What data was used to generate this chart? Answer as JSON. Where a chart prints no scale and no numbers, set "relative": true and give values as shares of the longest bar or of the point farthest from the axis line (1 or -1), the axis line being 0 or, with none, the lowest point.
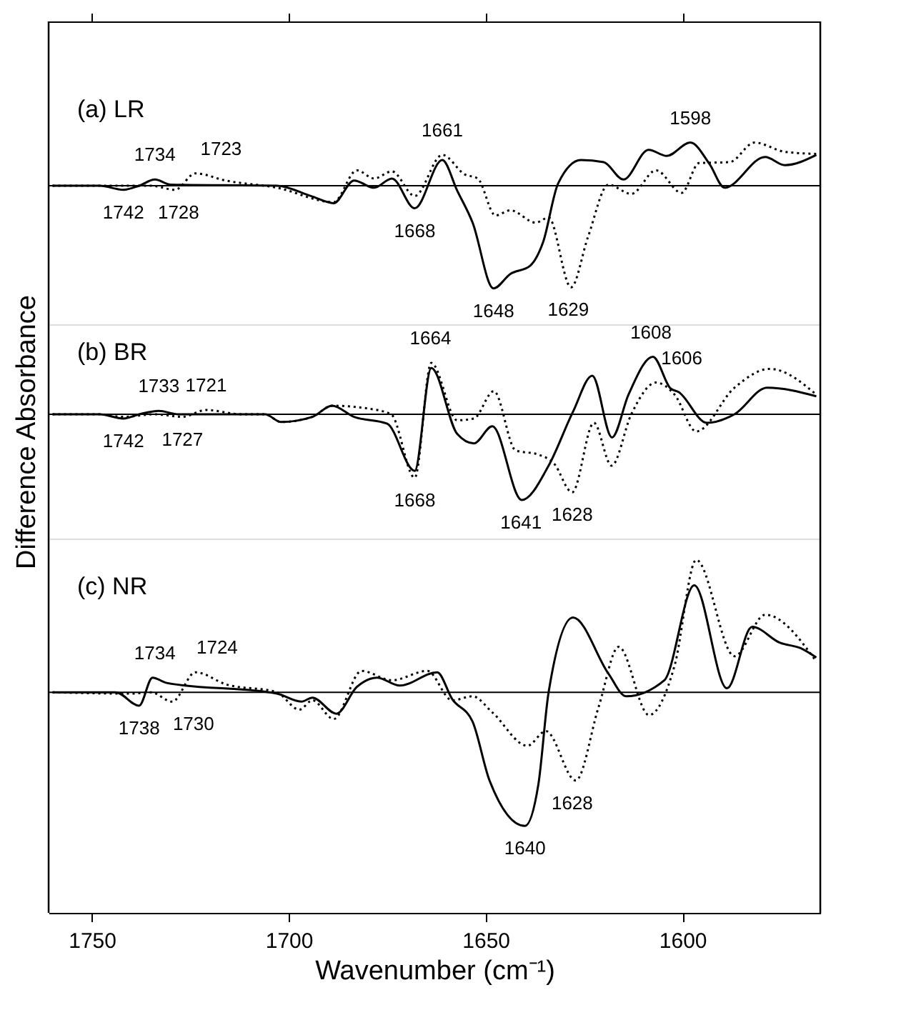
{
  "chart_data": [
    {
      "type": "line",
      "relative": true,
      "title": "(a) LR",
      "xlim": [
        1761,
        1565
      ],
      "tick_labels": false,
      "xticks": [
        {
          "value": 1750,
          "label": null
        },
        {
          "value": 1700,
          "label": null
        },
        {
          "value": 1650,
          "label": null
        },
        {
          "value": 1600,
          "label": null
        }
      ],
      "ref_lines": [
        {
          "axis": "y",
          "value": 0
        }
      ],
      "series": [
        {
          "color": "#000000",
          "line_style": "solid",
          "x": [
            1760,
            1748,
            1742,
            1738,
            1734,
            1730,
            1703,
            1694.4,
            1688.6,
            1683.4,
            1678.3,
            1673.8,
            1668,
            1661,
            1657.2,
            1653.3,
            1648,
            1643.7,
            1638.7,
            1635.4,
            1631.6,
            1625.8,
            1620,
            1615,
            1608.6,
            1604,
            1598,
            1593.1,
            1589.3,
            1579,
            1574,
            1566
          ],
          "values": [
            0,
            0,
            -0.04,
            0,
            0.06,
            0.01,
            0,
            -0.1,
            -0.17,
            0.05,
            -0.02,
            0.07,
            -0.22,
            0.25,
            -0.05,
            -0.36,
            -1,
            -0.86,
            -0.78,
            -0.55,
            0.02,
            0.25,
            0.23,
            0.06,
            0.35,
            0.29,
            0.42,
            0.21,
            -0.02,
            0.28,
            0.2,
            0.3
          ]
        },
        {
          "color": "#000000",
          "line_style": "dotted",
          "x": [
            1760,
            1735,
            1728.9,
            1723.7,
            1716,
            1703,
            1688.6,
            1682.7,
            1678.3,
            1673.8,
            1668,
            1661,
            1655.3,
            1652,
            1647.5,
            1643.7,
            1637.3,
            1634,
            1628.3,
            1624,
            1618.8,
            1613,
            1606.7,
            1600.2,
            1595.8,
            1588,
            1581.7,
            1574,
            1566
          ],
          "values": [
            0,
            0,
            -0.04,
            0.12,
            0.05,
            -0.02,
            -0.16,
            0.15,
            0.07,
            0.14,
            -0.1,
            0.3,
            0.11,
            0.07,
            -0.29,
            -0.24,
            -0.36,
            -0.31,
            -0.99,
            -0.5,
            0.01,
            -0.08,
            0.15,
            -0.07,
            0.22,
            0.23,
            0.42,
            0.33,
            0.31
          ]
        }
      ],
      "annotations": [
        {
          "text": "1742",
          "x": 1742,
          "y": -0.04
        },
        {
          "text": "1734",
          "x": 1734,
          "y": 0.06
        },
        {
          "text": "1723",
          "x": 1723,
          "y": 0.12
        },
        {
          "text": "1728",
          "x": 1728,
          "y": -0.04
        },
        {
          "text": "1668",
          "x": 1668,
          "y": -0.22
        },
        {
          "text": "1661",
          "x": 1661,
          "y": 0.3
        },
        {
          "text": "1648",
          "x": 1648,
          "y": -1
        },
        {
          "text": "1629",
          "x": 1629,
          "y": -0.99
        },
        {
          "text": "1598",
          "x": 1598,
          "y": 0.42
        }
      ]
    },
    {
      "type": "line",
      "relative": true,
      "title": "(b) BR",
      "ylabel": "Difference Absorbance",
      "xlim": [
        1761,
        1565
      ],
      "tick_labels": false,
      "ref_lines": [
        {
          "axis": "y",
          "value": 0
        }
      ],
      "series": [
        {
          "color": "#000000",
          "line_style": "solid",
          "x": [
            1760,
            1748,
            1742,
            1738,
            1733,
            1728,
            1706,
            1702,
            1694,
            1689,
            1683.4,
            1675,
            1668,
            1663.8,
            1657.2,
            1653,
            1648.3,
            1640.8,
            1634,
            1627.8,
            1622.9,
            1617.9,
            1613.7,
            1607.5,
            1603,
            1601,
            1593.8,
            1586.8,
            1578.5,
            1566
          ],
          "values": [
            0,
            0,
            -0.05,
            0,
            0.04,
            0,
            0,
            -0.09,
            -0.03,
            0.1,
            -0.03,
            -0.11,
            -0.66,
            0.54,
            -0.23,
            -0.34,
            -0.14,
            -1,
            -0.6,
            0.03,
            0.45,
            -0.27,
            0.23,
            0.67,
            0.3,
            0.26,
            -0.1,
            0,
            0.31,
            0.21
          ]
        },
        {
          "color": "#000000",
          "line_style": "dotted",
          "x": [
            1760,
            1748,
            1742,
            1734,
            1727,
            1721,
            1712,
            1706,
            1702,
            1694,
            1689,
            1680.3,
            1674,
            1668,
            1663.8,
            1657.2,
            1653,
            1647.9,
            1642.4,
            1636.6,
            1632.7,
            1628,
            1622.5,
            1618,
            1613,
            1606.7,
            1602,
            1596.5,
            1586.8,
            1577.8,
            1566
          ],
          "values": [
            0,
            0,
            -0.03,
            0,
            -0.03,
            0.05,
            0,
            0,
            -0.09,
            -0.03,
            0.1,
            0.07,
            0,
            -0.74,
            0.6,
            -0.07,
            -0.05,
            0.27,
            -0.42,
            -0.47,
            -0.57,
            -0.91,
            -0.1,
            -0.6,
            0,
            0.37,
            0.23,
            -0.2,
            0.31,
            0.53,
            0.23
          ]
        }
      ],
      "annotations": [
        {
          "text": "1742",
          "x": 1742,
          "y": -0.05
        },
        {
          "text": "1733",
          "x": 1733,
          "y": 0.04
        },
        {
          "text": "1721",
          "x": 1721,
          "y": 0.05
        },
        {
          "text": "1727",
          "x": 1727,
          "y": -0.03
        },
        {
          "text": "1668",
          "x": 1668,
          "y": -0.74
        },
        {
          "text": "1664",
          "x": 1664,
          "y": 0.6
        },
        {
          "text": "1641",
          "x": 1641,
          "y": -1
        },
        {
          "text": "1628",
          "x": 1628,
          "y": -0.91
        },
        {
          "text": "1608",
          "x": 1608,
          "y": 0.67
        },
        {
          "text": "1606",
          "x": 1606,
          "y": 0.37
        }
      ]
    },
    {
      "type": "line",
      "relative": true,
      "title": "(c) NR",
      "xlabel": "Wavenumber (cm⁻¹)",
      "xlim": [
        1761,
        1565
      ],
      "tick_labels": "x",
      "xticks": [
        1750,
        1700,
        1650,
        1600
      ],
      "ref_lines": [
        {
          "axis": "y",
          "value": 0
        }
      ],
      "series": [
        {
          "color": "#000000",
          "line_style": "solid",
          "x": [
            1760,
            1744,
            1738,
            1734.6,
            1731,
            1703,
            1696.8,
            1694,
            1687.9,
            1682.7,
            1677.6,
            1671.8,
            1662.3,
            1658.5,
            1653.3,
            1649,
            1640,
            1636.6,
            1634,
            1627.8,
            1618.8,
            1614.3,
            1604.6,
            1597,
            1588.7,
            1582.3,
            1575.2,
            1570,
            1566
          ],
          "values": [
            0,
            0,
            -0.1,
            0.11,
            0.07,
            -0.01,
            -0.07,
            -0.04,
            -0.16,
            0.04,
            0.11,
            0.05,
            0.15,
            -0.05,
            -0.22,
            -0.66,
            -1,
            -0.69,
            0,
            0.56,
            0.14,
            -0.03,
            0.09,
            0.8,
            0.03,
            0.49,
            0.37,
            0.33,
            0.26
          ]
        },
        {
          "color": "#000000",
          "line_style": "dotted",
          "x": [
            1760,
            1740,
            1735,
            1729.6,
            1723.7,
            1716,
            1703,
            1697.3,
            1694,
            1688.6,
            1681.5,
            1673.8,
            1664.8,
            1658.5,
            1653.3,
            1648.3,
            1639.4,
            1634.7,
            1627.1,
            1621.3,
            1616.2,
            1608.5,
            1602,
            1596.5,
            1586.8,
            1579,
            1566
          ],
          "values": [
            0,
            -0.01,
            0,
            -0.07,
            0.15,
            0.06,
            0,
            -0.13,
            -0.06,
            -0.2,
            0.16,
            0.09,
            0.16,
            -0.06,
            -0.03,
            -0.15,
            -0.4,
            -0.29,
            -0.66,
            -0.11,
            0.34,
            -0.17,
            0.2,
            0.99,
            0.27,
            0.58,
            0.23
          ]
        }
      ],
      "annotations": [
        {
          "text": "1738",
          "x": 1738,
          "y": -0.1
        },
        {
          "text": "1734",
          "x": 1734,
          "y": 0.11
        },
        {
          "text": "1724",
          "x": 1724,
          "y": 0.15
        },
        {
          "text": "1730",
          "x": 1730,
          "y": -0.07
        },
        {
          "text": "1640",
          "x": 1640,
          "y": -1
        },
        {
          "text": "1628",
          "x": 1628,
          "y": -0.66
        }
      ]
    }
  ]
}
